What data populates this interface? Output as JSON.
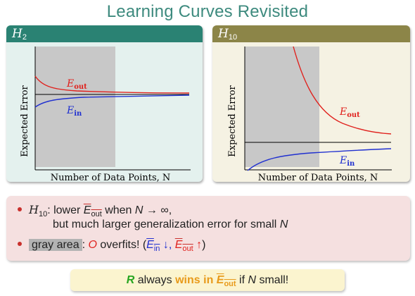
{
  "slide": {
    "title": "Learning Curves Revisited"
  },
  "panels": [
    {
      "title_symbol": "H",
      "title_subscript": "2",
      "ylabel": "Expected Error",
      "xlabel": "Number of Data Points, N",
      "curve_labels": {
        "out": "E_out",
        "in": "E_in"
      }
    },
    {
      "title_symbol": "H",
      "title_subscript": "10",
      "ylabel": "Expected Error",
      "xlabel": "Number of Data Points, N",
      "curve_labels": {
        "out": "E_out",
        "in": "E_in"
      }
    }
  ],
  "chart_data": [
    {
      "type": "line",
      "gray_area_fraction": 0.5,
      "series": [
        {
          "name": "E_out",
          "color": "#e0211d",
          "shape": "decreasing to asymptote"
        },
        {
          "name": "E_in",
          "color": "#2030d0",
          "shape": "increasing to asymptote"
        },
        {
          "name": "",
          "color": "#000000",
          "shape": "flat asymptote"
        }
      ],
      "ylabel": "Expected Error",
      "xlabel": "Number of Data Points, N"
    },
    {
      "type": "line",
      "gray_area_fraction": 0.5,
      "series": [
        {
          "name": "E_out",
          "color": "#e0211d",
          "shape": "steep decrease to asymptote"
        },
        {
          "name": "E_in",
          "color": "#2030d0",
          "shape": "steep increase to asymptote"
        },
        {
          "name": "",
          "color": "#000000",
          "shape": "flat asymptote"
        }
      ],
      "ylabel": "Expected Error",
      "xlabel": "Number of Data Points, N"
    }
  ],
  "bullets": {
    "b1": {
      "symbol": "H",
      "subscript": "10",
      "text_a": ": lower ",
      "eout_E": "E",
      "eout_sub": "out",
      "text_b": " when ",
      "n": "N",
      "arrow": " → ∞,",
      "line2_a": "but much larger generalization error for small ",
      "line2_n": "N"
    },
    "b2": {
      "gray_label": "gray area",
      "text_a": ": ",
      "o": "O",
      "text_b": " overfits! (",
      "ein_E": "E",
      "ein_sub": "in",
      "down": " ↓, ",
      "eout_E": "E",
      "eout_sub": "out",
      "up": " ↑",
      "text_c": ")"
    }
  },
  "bottom": {
    "r": "R",
    "always": " always ",
    "wins": "wins in ",
    "eout_E": "E",
    "eout_sub": "out",
    "rest_a": " if ",
    "n": "N",
    "rest_b": " small!"
  }
}
